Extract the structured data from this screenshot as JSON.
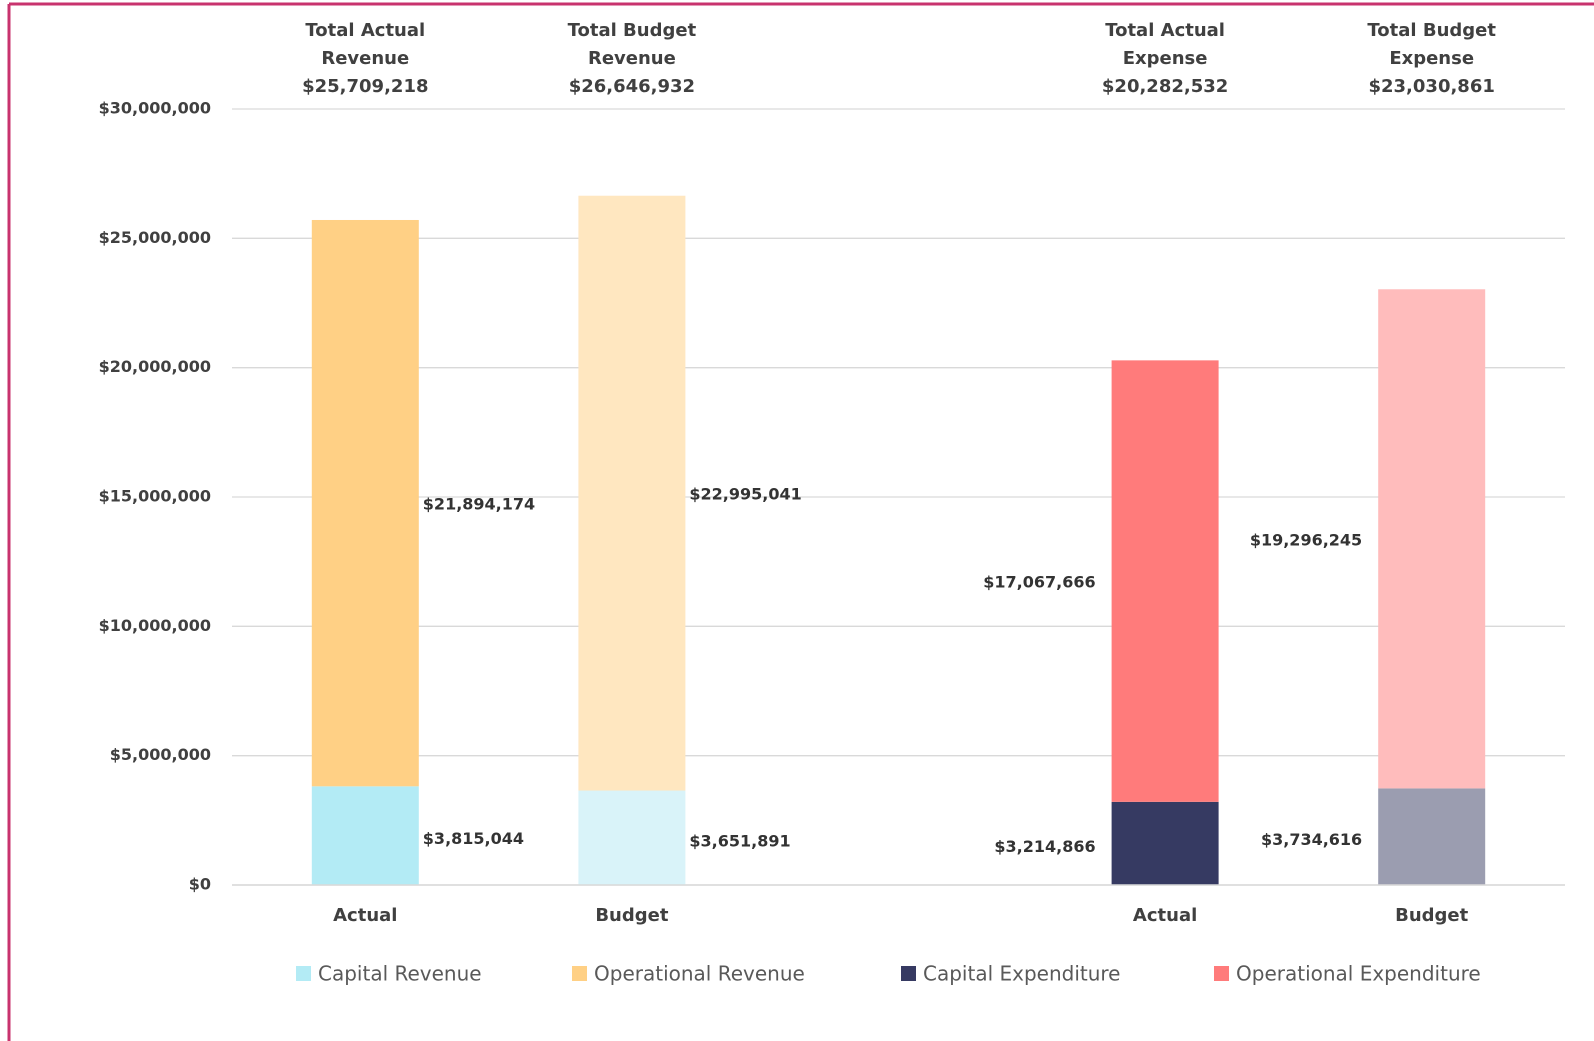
{
  "chart_data": {
    "type": "stacked_bar",
    "categories": [
      "Actual",
      "Budget",
      null,
      "Actual",
      "Budget"
    ],
    "annotations": [
      {
        "lines": [
          "Total Actual",
          "Revenue",
          "$25,709,218"
        ]
      },
      {
        "lines": [
          "Total Budget",
          "Revenue",
          "$26,646,932"
        ]
      },
      null,
      {
        "lines": [
          "Total Actual",
          "Expense",
          "$20,282,532"
        ]
      },
      {
        "lines": [
          "Total Budget",
          "Expense",
          "$23,030,861"
        ]
      }
    ],
    "series": [
      {
        "name": "Capital Revenue",
        "color": "#b3ebf5",
        "colors": [
          "#b3ebf5",
          "#d9f3f9",
          null,
          null,
          null
        ],
        "values": [
          3815044,
          3651891,
          null,
          null,
          null
        ],
        "value_labels": [
          "$3,815,044",
          "$3,651,891",
          null,
          null,
          null
        ]
      },
      {
        "name": "Operational Revenue",
        "color": "#ffd085",
        "colors": [
          "#ffd085",
          "#ffe7c0",
          null,
          null,
          null
        ],
        "values": [
          21894174,
          22995041,
          null,
          null,
          null
        ],
        "value_labels": [
          "$21,894,174",
          "$22,995,041",
          null,
          null,
          null
        ]
      },
      {
        "name": "Capital Expenditure",
        "color": "#363a62",
        "colors": [
          null,
          null,
          null,
          "#363a62",
          "#9b9db0"
        ],
        "values": [
          null,
          null,
          null,
          3214866,
          3734616
        ],
        "value_labels": [
          null,
          null,
          null,
          "$3,214,866",
          "$3,734,616"
        ]
      },
      {
        "name": "Operational Expenditure",
        "color": "#ff7b7b",
        "colors": [
          null,
          null,
          null,
          "#ff7b7b",
          "#ffbcbc"
        ],
        "values": [
          null,
          null,
          null,
          17067666,
          19296245
        ],
        "value_labels": [
          null,
          null,
          null,
          "$17,067,666",
          "$19,296,245"
        ]
      }
    ],
    "ylim": [
      0,
      30000000
    ],
    "yticks": [
      {
        "value": 0,
        "label": "$0"
      },
      {
        "value": 5000000,
        "label": "$5,000,000"
      },
      {
        "value": 10000000,
        "label": "$10,000,000"
      },
      {
        "value": 15000000,
        "label": "$15,000,000"
      },
      {
        "value": 20000000,
        "label": "$20,000,000"
      },
      {
        "value": 25000000,
        "label": "$25,000,000"
      },
      {
        "value": 30000000,
        "label": "$30,000,000"
      }
    ],
    "grid": true,
    "legend": "bottom"
  }
}
